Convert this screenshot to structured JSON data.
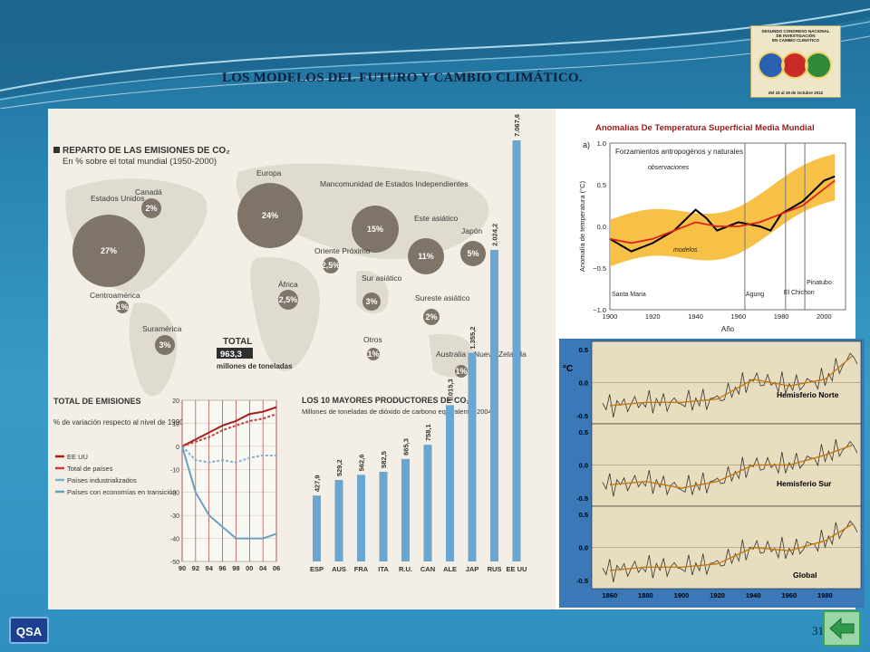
{
  "slide": {
    "title": "LOS MODELOS DEL FUTURO Y CAMBIO CLIMÁTICO.",
    "page_number": "31",
    "qsa_label": "QSA"
  },
  "logo": {
    "lines": [
      "SEGUNDO CONGRESO NACIONAL",
      "DE INVESTIGACIÓN",
      "EN CAMBIO CLIMÁTICO"
    ],
    "date": "del 15 al 19 de Octubre 2012"
  },
  "map_infographic": {
    "title": "REPARTO DE LAS EMISIONES DE CO₂",
    "subtitle": "En % sobre el total mundial (1950-2000)",
    "regions": [
      {
        "name": "Estados Unidos",
        "value": "27%"
      },
      {
        "name": "Canadá",
        "value": "2%"
      },
      {
        "name": "Europa",
        "value": "24%"
      },
      {
        "name": "Mancomunidad de Estados Independientes",
        "value": "15%"
      },
      {
        "name": "Este asiático",
        "value": "11%"
      },
      {
        "name": "Japón",
        "value": "5%"
      },
      {
        "name": "Oriente Próximo",
        "value": "2,5%"
      },
      {
        "name": "África",
        "value": "2,5%"
      },
      {
        "name": "Sur asiático",
        "value": "3%"
      },
      {
        "name": "Sureste asiático",
        "value": "2%"
      },
      {
        "name": "Centroamérica",
        "value": "1%"
      },
      {
        "name": "Suramérica",
        "value": "3%"
      },
      {
        "name": "Otros",
        "value": "1%"
      },
      {
        "name": "Australia y Nueva Zelanda",
        "value": "1%"
      }
    ],
    "total_label": "TOTAL",
    "total_value": "963,3",
    "total_unit": "millones de toneladas"
  },
  "line_panel": {
    "title": "TOTAL DE EMISIONES",
    "subtitle": "% de variación respecto al nivel de 1990",
    "legend": [
      "EE UU",
      "Total de países",
      "Países industrializados",
      "Países con economías en transición"
    ],
    "colors": [
      "#a02020",
      "#c04040",
      "#7fb1cf",
      "#6aa0c0"
    ]
  },
  "chart_data": [
    {
      "type": "line",
      "title": "TOTAL DE EMISIONES",
      "x": [
        "90",
        "92",
        "94",
        "96",
        "98",
        "00",
        "04",
        "06"
      ],
      "ylim": [
        -50,
        20
      ],
      "yticks": [
        20,
        10,
        0,
        -10,
        -20,
        -30,
        -40,
        -50
      ],
      "series": [
        {
          "name": "EE UU",
          "values": [
            0,
            3,
            6,
            9,
            11,
            14,
            15,
            17
          ]
        },
        {
          "name": "Total de países",
          "values": [
            0,
            2,
            4,
            7,
            9,
            11,
            12,
            14
          ]
        },
        {
          "name": "Países industrializados",
          "values": [
            0,
            -6,
            -7,
            -6,
            -7,
            -5,
            -4,
            -4
          ]
        },
        {
          "name": "Países con economías en transición",
          "values": [
            0,
            -20,
            -30,
            -35,
            -40,
            -40,
            -40,
            -38
          ]
        }
      ]
    },
    {
      "type": "bar",
      "title": "LOS 10 MAYORES PRODUCTORES DE CO₂",
      "subtitle": "Millones de toneladas de dióxido de carbono equivalente, 2004",
      "categories": [
        "ESP",
        "AUS",
        "FRA",
        "ITA",
        "R.U.",
        "CAN",
        "ALE",
        "JAP",
        "RUS",
        "EE UU"
      ],
      "value_labels": [
        "427,9",
        "529,2",
        "562,6",
        "582,5",
        "665,3",
        "758,1",
        "1.015,3",
        "1.355,2",
        "2.024,2",
        "7.067,6"
      ],
      "values": [
        427.9,
        529.2,
        562.6,
        582.5,
        665.3,
        758.1,
        1015.3,
        1355.2,
        2024.2,
        7067.6
      ]
    },
    {
      "type": "line",
      "title": "Anomalías De Temperatura Superficial Media Mundial",
      "panel_label": "a)",
      "legend_title": "Forzamientos antropogénos y naturales",
      "xlabel": "Año",
      "ylabel": "Anomalía de temperatura (°C)",
      "xlim": [
        1900,
        2010
      ],
      "ylim": [
        -1.0,
        1.0
      ],
      "yticks": [
        "1.0",
        "0.5",
        "0.0",
        "−0.5",
        "−1.0"
      ],
      "xticks": [
        "1900",
        "1920",
        "1940",
        "1960",
        "1980",
        "2000"
      ],
      "annotations": [
        "observaciones",
        "modelos",
        "Santa Maria",
        "Agung",
        "El Chichon",
        "Pinatubo"
      ],
      "volcano_years": [
        1963,
        1982,
        1991
      ],
      "series": [
        {
          "name": "observaciones",
          "x": [
            1900,
            1910,
            1920,
            1930,
            1940,
            1945,
            1950,
            1960,
            1970,
            1975,
            1980,
            1990,
            2000,
            2005
          ],
          "values": [
            -0.15,
            -0.3,
            -0.2,
            -0.05,
            0.2,
            0.1,
            -0.05,
            0.05,
            0.0,
            -0.05,
            0.15,
            0.3,
            0.55,
            0.6
          ]
        },
        {
          "name": "modelos",
          "x": [
            1900,
            1910,
            1920,
            1930,
            1940,
            1950,
            1960,
            1970,
            1980,
            1990,
            2000,
            2005
          ],
          "values": [
            -0.15,
            -0.2,
            -0.15,
            -0.05,
            0.05,
            0.0,
            0.0,
            0.05,
            0.15,
            0.25,
            0.45,
            0.55
          ]
        }
      ]
    },
    {
      "type": "line",
      "title": "Hemisferio Norte / Hemisferio Sur / Global",
      "ylabel": "°C",
      "xticks": [
        "1860",
        "1880",
        "1900",
        "1920",
        "1940",
        "1960",
        "1980"
      ],
      "panels": [
        {
          "name": "Hemisferio Norte",
          "yticks": [
            "0.5",
            "0.0",
            "-0.5"
          ]
        },
        {
          "name": "Hemisferio Sur",
          "yticks": [
            "0.5",
            "0.0",
            "-0.5"
          ]
        },
        {
          "name": "Global",
          "yticks": [
            "0.5",
            "0.0",
            "-0.5"
          ]
        }
      ],
      "series": [
        {
          "name": "Hemisferio Norte",
          "x": [
            1860,
            1880,
            1900,
            1920,
            1940,
            1960,
            1980,
            1995
          ],
          "values": [
            -0.35,
            -0.3,
            -0.3,
            -0.25,
            0.05,
            -0.05,
            0.05,
            0.4
          ]
        },
        {
          "name": "Hemisferio Sur",
          "x": [
            1860,
            1880,
            1900,
            1920,
            1940,
            1960,
            1980,
            1995
          ],
          "values": [
            -0.3,
            -0.25,
            -0.35,
            -0.25,
            0.0,
            0.0,
            0.15,
            0.3
          ]
        },
        {
          "name": "Global",
          "x": [
            1860,
            1880,
            1900,
            1920,
            1940,
            1960,
            1980,
            1995
          ],
          "values": [
            -0.35,
            -0.3,
            -0.3,
            -0.25,
            0.0,
            -0.05,
            0.1,
            0.35
          ]
        }
      ]
    }
  ]
}
